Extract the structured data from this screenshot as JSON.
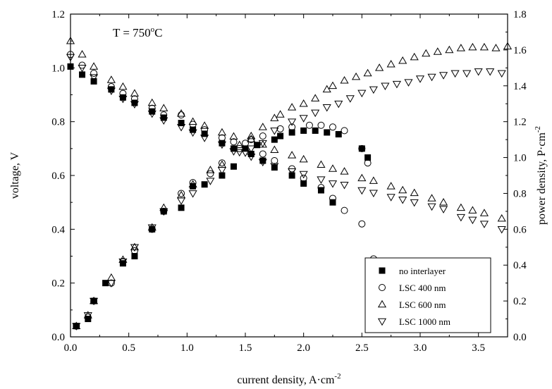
{
  "chart_data": {
    "type": "scatter",
    "annotation": {
      "text": "T = 750",
      "sup": "o",
      "suffix": "C"
    },
    "xlabel": {
      "text": "current density, A·cm",
      "sup": "-2"
    },
    "ylabel": {
      "text": "voltage, V"
    },
    "y2label": {
      "text": "power density, P·cm",
      "sup": "-2"
    },
    "xlim": [
      0,
      3.75
    ],
    "ylim": [
      0,
      1.2
    ],
    "y2lim": [
      0,
      1.8
    ],
    "xticks": [
      "0.0",
      "0.5",
      "1.0",
      "1.5",
      "2.0",
      "2.5",
      "3.0",
      "3.5"
    ],
    "yticks": [
      "0.0",
      "0.2",
      "0.4",
      "0.6",
      "0.8",
      "1.0",
      "1.2"
    ],
    "y2ticks": [
      "0.0",
      "0.2",
      "0.4",
      "0.6",
      "0.8",
      "1.0",
      "1.2",
      "1.4",
      "1.6",
      "1.8"
    ],
    "legend_position": "bottom-right",
    "series": [
      {
        "name": "no interlayer",
        "marker": "filled-square",
        "voltage": [
          [
            0,
            1.005
          ],
          [
            0.1,
            0.975
          ],
          [
            0.2,
            0.95
          ],
          [
            0.35,
            0.92
          ],
          [
            0.45,
            0.89
          ],
          [
            0.55,
            0.87
          ],
          [
            0.7,
            0.838
          ],
          [
            0.8,
            0.815
          ],
          [
            0.95,
            0.795
          ],
          [
            1.05,
            0.77
          ],
          [
            1.15,
            0.755
          ],
          [
            1.3,
            0.72
          ],
          [
            1.4,
            0.7
          ],
          [
            1.55,
            0.68
          ],
          [
            1.65,
            0.655
          ],
          [
            1.75,
            0.63
          ],
          [
            1.9,
            0.6
          ],
          [
            2.0,
            0.57
          ],
          [
            2.15,
            0.545
          ],
          [
            2.25,
            0.5
          ]
        ],
        "power": [
          [
            0.05,
            0.06
          ],
          [
            0.15,
            0.1
          ],
          [
            0.2,
            0.2
          ],
          [
            0.3,
            0.3
          ],
          [
            0.45,
            0.41
          ],
          [
            0.55,
            0.45
          ],
          [
            0.7,
            0.6
          ],
          [
            0.8,
            0.7
          ],
          [
            0.95,
            0.72
          ],
          [
            1.05,
            0.84
          ],
          [
            1.15,
            0.85
          ],
          [
            1.3,
            0.9
          ],
          [
            1.4,
            0.95
          ],
          [
            1.5,
            1.05
          ],
          [
            1.6,
            1.07
          ],
          [
            1.75,
            1.1
          ],
          [
            1.8,
            1.12
          ],
          [
            1.9,
            1.14
          ],
          [
            2.0,
            1.15
          ],
          [
            2.1,
            1.15
          ],
          [
            2.2,
            1.14
          ],
          [
            2.3,
            1.13
          ],
          [
            2.5,
            1.05
          ],
          [
            2.55,
            1.0
          ]
        ]
      },
      {
        "name": "LSC 400 nm",
        "marker": "open-circle",
        "voltage": [
          [
            0,
            1.05
          ],
          [
            0.1,
            1.01
          ],
          [
            0.2,
            0.98
          ],
          [
            0.35,
            0.93
          ],
          [
            0.45,
            0.905
          ],
          [
            0.55,
            0.885
          ],
          [
            0.7,
            0.85
          ],
          [
            0.8,
            0.825
          ],
          [
            0.95,
            0.825
          ],
          [
            1.05,
            0.79
          ],
          [
            1.15,
            0.77
          ],
          [
            1.3,
            0.74
          ],
          [
            1.4,
            0.725
          ],
          [
            1.5,
            0.72
          ],
          [
            1.65,
            0.68
          ],
          [
            1.75,
            0.655
          ],
          [
            1.9,
            0.625
          ],
          [
            2.0,
            0.59
          ],
          [
            2.15,
            0.555
          ],
          [
            2.25,
            0.515
          ],
          [
            2.35,
            0.47
          ],
          [
            2.5,
            0.42
          ],
          [
            2.6,
            0.29
          ]
        ],
        "power": [
          [
            0.05,
            0.06
          ],
          [
            0.15,
            0.11
          ],
          [
            0.2,
            0.2
          ],
          [
            0.35,
            0.3
          ],
          [
            0.45,
            0.42
          ],
          [
            0.55,
            0.48
          ],
          [
            0.7,
            0.6
          ],
          [
            0.8,
            0.7
          ],
          [
            0.95,
            0.8
          ],
          [
            1.05,
            0.86
          ],
          [
            1.2,
            0.91
          ],
          [
            1.3,
            0.97
          ],
          [
            1.45,
            1.05
          ],
          [
            1.55,
            1.1
          ],
          [
            1.65,
            1.12
          ],
          [
            1.8,
            1.16
          ],
          [
            1.9,
            1.17
          ],
          [
            2.05,
            1.18
          ],
          [
            2.15,
            1.18
          ],
          [
            2.25,
            1.17
          ],
          [
            2.35,
            1.15
          ],
          [
            2.5,
            1.05
          ],
          [
            2.55,
            0.97
          ]
        ]
      },
      {
        "name": "LSC 600 nm",
        "marker": "open-triangle-up",
        "voltage": [
          [
            0,
            1.1
          ],
          [
            0.1,
            1.05
          ],
          [
            0.2,
            1.005
          ],
          [
            0.35,
            0.955
          ],
          [
            0.45,
            0.93
          ],
          [
            0.55,
            0.905
          ],
          [
            0.7,
            0.87
          ],
          [
            0.8,
            0.85
          ],
          [
            0.95,
            0.83
          ],
          [
            1.05,
            0.8
          ],
          [
            1.15,
            0.785
          ],
          [
            1.3,
            0.76
          ],
          [
            1.4,
            0.745
          ],
          [
            1.55,
            0.735
          ],
          [
            1.65,
            0.715
          ],
          [
            1.75,
            0.695
          ],
          [
            1.9,
            0.675
          ],
          [
            2.0,
            0.66
          ],
          [
            2.15,
            0.64
          ],
          [
            2.25,
            0.625
          ],
          [
            2.35,
            0.615
          ],
          [
            2.5,
            0.59
          ],
          [
            2.6,
            0.58
          ],
          [
            2.75,
            0.56
          ],
          [
            2.85,
            0.545
          ],
          [
            2.95,
            0.535
          ],
          [
            3.1,
            0.515
          ],
          [
            3.2,
            0.5
          ],
          [
            3.35,
            0.48
          ],
          [
            3.45,
            0.47
          ],
          [
            3.55,
            0.46
          ],
          [
            3.7,
            0.44
          ]
        ],
        "power": [
          [
            0.05,
            0.06
          ],
          [
            0.15,
            0.12
          ],
          [
            0.2,
            0.2
          ],
          [
            0.35,
            0.33
          ],
          [
            0.45,
            0.43
          ],
          [
            0.55,
            0.5
          ],
          [
            0.7,
            0.61
          ],
          [
            0.8,
            0.72
          ],
          [
            0.95,
            0.79
          ],
          [
            1.05,
            0.85
          ],
          [
            1.2,
            0.93
          ],
          [
            1.3,
            0.96
          ],
          [
            1.45,
            1.07
          ],
          [
            1.55,
            1.12
          ],
          [
            1.65,
            1.17
          ],
          [
            1.75,
            1.22
          ],
          [
            1.8,
            1.24
          ],
          [
            1.9,
            1.28
          ],
          [
            2.0,
            1.3
          ],
          [
            2.1,
            1.33
          ],
          [
            2.2,
            1.38
          ],
          [
            2.25,
            1.4
          ],
          [
            2.35,
            1.43
          ],
          [
            2.45,
            1.45
          ],
          [
            2.55,
            1.47
          ],
          [
            2.65,
            1.5
          ],
          [
            2.75,
            1.52
          ],
          [
            2.85,
            1.54
          ],
          [
            2.95,
            1.56
          ],
          [
            3.05,
            1.58
          ],
          [
            3.15,
            1.59
          ],
          [
            3.25,
            1.6
          ],
          [
            3.35,
            1.61
          ],
          [
            3.45,
            1.615
          ],
          [
            3.55,
            1.615
          ],
          [
            3.65,
            1.61
          ],
          [
            3.75,
            1.62
          ]
        ]
      },
      {
        "name": "LSC 1000 nm",
        "marker": "open-triangle-down",
        "voltage": [
          [
            0,
            1.04
          ],
          [
            0.1,
            1.0
          ],
          [
            0.2,
            0.965
          ],
          [
            0.35,
            0.915
          ],
          [
            0.45,
            0.885
          ],
          [
            0.55,
            0.865
          ],
          [
            0.7,
            0.83
          ],
          [
            0.8,
            0.805
          ],
          [
            0.95,
            0.78
          ],
          [
            1.05,
            0.76
          ],
          [
            1.15,
            0.74
          ],
          [
            1.3,
            0.715
          ],
          [
            1.4,
            0.69
          ],
          [
            1.5,
            0.685
          ],
          [
            1.55,
            0.67
          ],
          [
            1.65,
            0.65
          ],
          [
            1.75,
            0.635
          ],
          [
            1.9,
            0.615
          ],
          [
            2.0,
            0.605
          ],
          [
            2.15,
            0.585
          ],
          [
            2.25,
            0.57
          ],
          [
            2.35,
            0.565
          ],
          [
            2.5,
            0.545
          ],
          [
            2.6,
            0.535
          ],
          [
            2.75,
            0.52
          ],
          [
            2.85,
            0.51
          ],
          [
            2.95,
            0.5
          ],
          [
            3.1,
            0.485
          ],
          [
            3.2,
            0.475
          ],
          [
            3.35,
            0.445
          ],
          [
            3.45,
            0.435
          ],
          [
            3.55,
            0.42
          ],
          [
            3.7,
            0.4
          ]
        ],
        "power": [
          [
            0.05,
            0.06
          ],
          [
            0.15,
            0.12
          ],
          [
            0.2,
            0.2
          ],
          [
            0.35,
            0.3
          ],
          [
            0.45,
            0.42
          ],
          [
            0.55,
            0.5
          ],
          [
            0.7,
            0.61
          ],
          [
            0.8,
            0.7
          ],
          [
            0.95,
            0.76
          ],
          [
            1.05,
            0.8
          ],
          [
            1.2,
            0.87
          ],
          [
            1.3,
            0.93
          ],
          [
            1.45,
            1.03
          ],
          [
            1.55,
            1.05
          ],
          [
            1.65,
            1.08
          ],
          [
            1.75,
            1.15
          ],
          [
            1.9,
            1.2
          ],
          [
            2.0,
            1.22
          ],
          [
            2.1,
            1.25
          ],
          [
            2.2,
            1.28
          ],
          [
            2.3,
            1.3
          ],
          [
            2.4,
            1.33
          ],
          [
            2.5,
            1.36
          ],
          [
            2.6,
            1.38
          ],
          [
            2.7,
            1.4
          ],
          [
            2.8,
            1.41
          ],
          [
            2.9,
            1.42
          ],
          [
            3.0,
            1.44
          ],
          [
            3.1,
            1.45
          ],
          [
            3.2,
            1.46
          ],
          [
            3.3,
            1.47
          ],
          [
            3.4,
            1.47
          ],
          [
            3.5,
            1.48
          ],
          [
            3.6,
            1.48
          ],
          [
            3.7,
            1.47
          ]
        ]
      }
    ]
  }
}
